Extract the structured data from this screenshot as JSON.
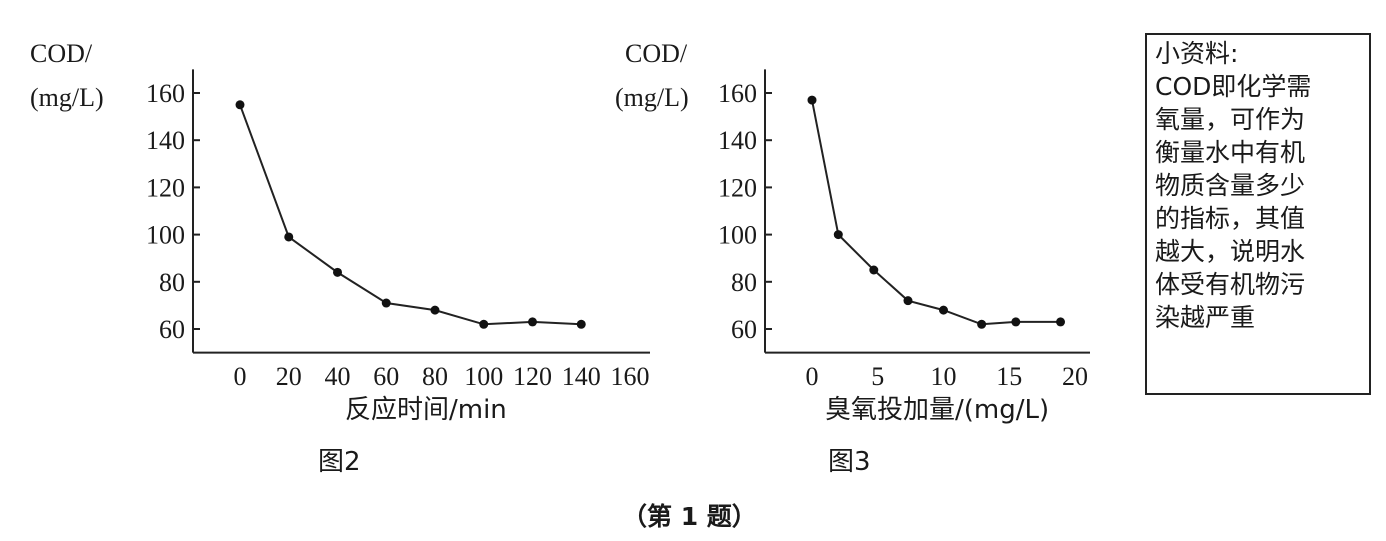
{
  "chart_data": [
    {
      "type": "line",
      "caption": "图2",
      "ylabel_line1": "COD/",
      "ylabel_line2": "(mg/L)",
      "xlabel": "反应时间/min",
      "x_ticks": [
        0,
        20,
        40,
        60,
        80,
        100,
        120,
        140,
        160
      ],
      "y_ticks": [
        60,
        80,
        100,
        120,
        140,
        160
      ],
      "xlim": [
        -19,
        165
      ],
      "ylim": [
        50,
        170
      ],
      "grid": false,
      "x": [
        0,
        20,
        40,
        60,
        80,
        100,
        120,
        140
      ],
      "y": [
        155,
        99,
        84,
        71,
        68,
        62,
        63,
        62
      ]
    },
    {
      "type": "line",
      "caption": "图3",
      "ylabel_line1": "COD/",
      "ylabel_line2": "(mg/L)",
      "xlabel": "臭氧投加量/(mg/L)",
      "x_ticks": [
        0,
        5,
        10,
        15,
        20
      ],
      "y_ticks": [
        60,
        80,
        100,
        120,
        140,
        160
      ],
      "xlim": [
        -3.6,
        21
      ],
      "ylim": [
        50,
        170
      ],
      "grid": false,
      "x": [
        0,
        2,
        4.7,
        7.3,
        10,
        12.9,
        15.5,
        18.9
      ],
      "y": [
        157,
        100,
        85,
        72,
        68,
        62,
        63,
        63
      ]
    }
  ],
  "note": {
    "lines": [
      "小资料:",
      "COD即化学需",
      "氧量，可作为",
      "衡量水中有机",
      "物质含量多少",
      "的指标，其值",
      "越大，说明水",
      "体受有机物污",
      "染越严重"
    ]
  },
  "footer": "（第 1 题）"
}
